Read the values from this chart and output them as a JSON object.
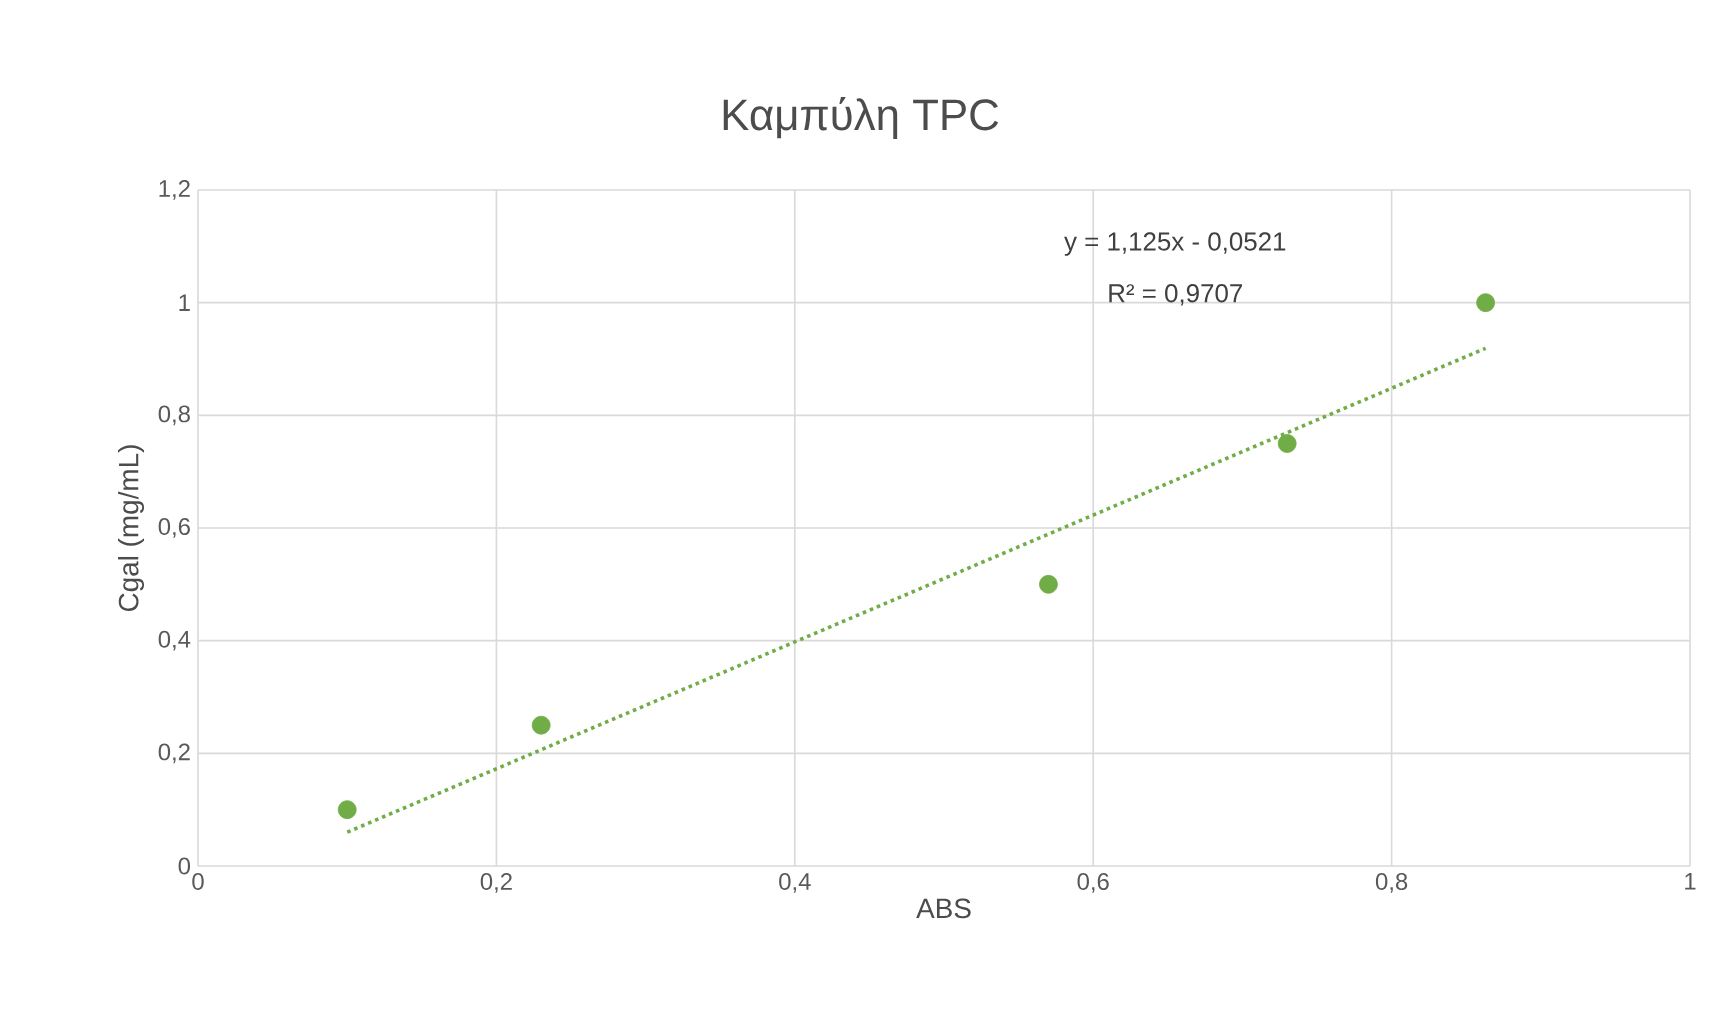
{
  "chart_data": {
    "type": "scatter",
    "title": "Καμπύλη TPC",
    "xlabel": "ABS",
    "ylabel": "Cgal (mg/mL)",
    "annotations": [
      "y = 1,125x - 0,0521",
      "R² = 0,9707"
    ],
    "xlim": [
      0,
      1
    ],
    "ylim": [
      0,
      1.2
    ],
    "xticks": [
      0,
      {
        "value": 0.2,
        "label": "0,2"
      },
      {
        "value": 0.4,
        "label": "0,4"
      },
      {
        "value": 0.6,
        "label": "0,6"
      },
      {
        "value": 0.8,
        "label": "0,8"
      },
      1
    ],
    "yticks": [
      0,
      {
        "value": 0.2,
        "label": "0,2"
      },
      {
        "value": 0.4,
        "label": "0,4"
      },
      {
        "value": 0.6,
        "label": "0,6"
      },
      {
        "value": 0.8,
        "label": "0,8"
      },
      1,
      {
        "value": 1.2,
        "label": "1,2"
      }
    ],
    "grid": true,
    "series": [
      {
        "color": "#70ad47",
        "marker": "circle",
        "x": [
          0.1,
          0.23,
          0.57,
          0.73,
          0.863
        ],
        "values": [
          0.1,
          0.25,
          0.5,
          0.75,
          1.0
        ]
      },
      {
        "type": "line",
        "color": "#70ad47",
        "marker": "none",
        "line_style": "dotted",
        "x": [
          0.1,
          0.863
        ],
        "values": [
          0.06,
          0.919
        ]
      }
    ]
  }
}
